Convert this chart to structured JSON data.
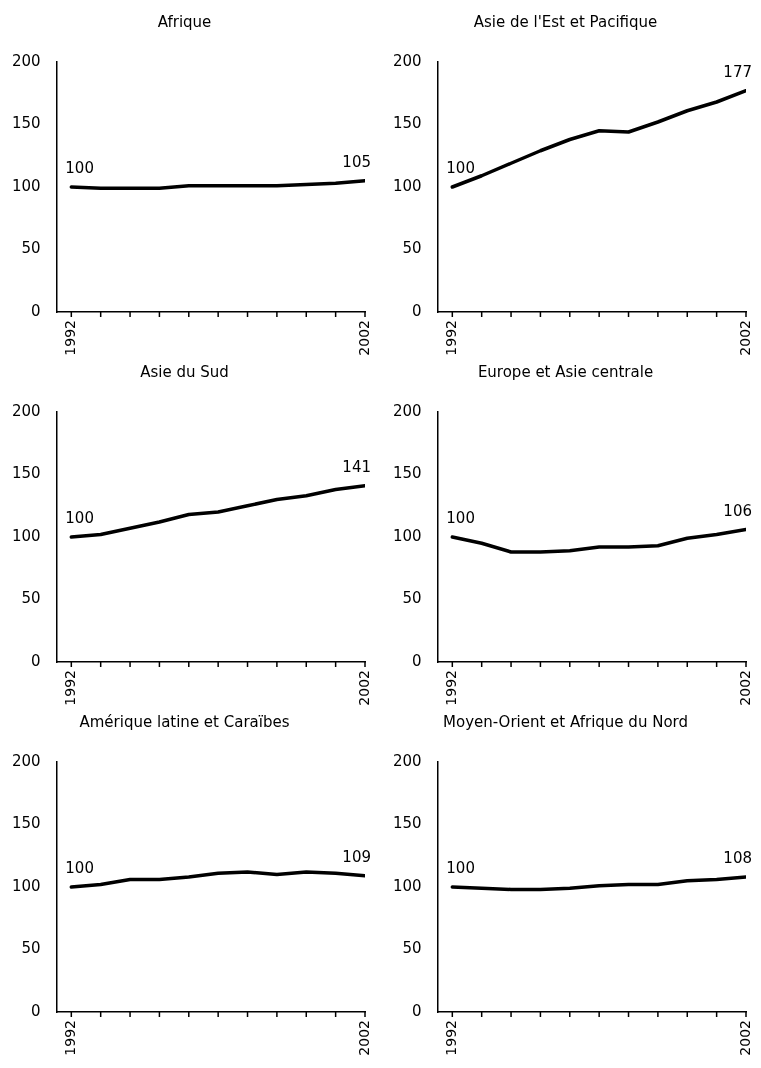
{
  "chart_data": [
    {
      "type": "line",
      "title": "Afrique",
      "categories": [
        "1992",
        null,
        null,
        null,
        null,
        null,
        null,
        null,
        null,
        null,
        "2002"
      ],
      "values": [
        100,
        99,
        99,
        99,
        101,
        101,
        101,
        101,
        102,
        103,
        105
      ],
      "value_labels": [
        "100",
        null,
        null,
        null,
        null,
        null,
        null,
        null,
        null,
        null,
        "105"
      ],
      "color": "#000000",
      "ylim": [
        0,
        200
      ],
      "yticks": [
        0,
        50,
        100,
        150,
        200
      ],
      "grid": false,
      "legend": false
    },
    {
      "type": "line",
      "title": "Asie de l'Est et Pacifique",
      "categories": [
        "1992",
        null,
        null,
        null,
        null,
        null,
        null,
        null,
        null,
        null,
        "2002"
      ],
      "values": [
        100,
        109,
        119,
        129,
        138,
        145,
        144,
        152,
        161,
        168,
        177
      ],
      "value_labels": [
        "100",
        null,
        null,
        null,
        null,
        null,
        null,
        null,
        null,
        null,
        "177"
      ],
      "color": "#000000",
      "ylim": [
        0,
        200
      ],
      "yticks": [
        0,
        50,
        100,
        150,
        200
      ],
      "grid": false,
      "legend": false
    },
    {
      "type": "line",
      "title": "Asie du Sud",
      "categories": [
        "1992",
        null,
        null,
        null,
        null,
        null,
        null,
        null,
        null,
        null,
        "2002"
      ],
      "values": [
        100,
        102,
        107,
        112,
        118,
        120,
        125,
        130,
        133,
        138,
        141
      ],
      "value_labels": [
        "100",
        null,
        null,
        null,
        null,
        null,
        null,
        null,
        null,
        null,
        "141"
      ],
      "color": "#000000",
      "ylim": [
        0,
        200
      ],
      "yticks": [
        0,
        50,
        100,
        150,
        200
      ],
      "grid": false,
      "legend": false
    },
    {
      "type": "line",
      "title": "Europe et Asie centrale",
      "categories": [
        "1992",
        null,
        null,
        null,
        null,
        null,
        null,
        null,
        null,
        null,
        "2002"
      ],
      "values": [
        100,
        95,
        88,
        88,
        89,
        92,
        92,
        93,
        99,
        102,
        106
      ],
      "value_labels": [
        "100",
        null,
        null,
        null,
        null,
        null,
        null,
        null,
        null,
        null,
        "106"
      ],
      "color": "#000000",
      "ylim": [
        0,
        200
      ],
      "yticks": [
        0,
        50,
        100,
        150,
        200
      ],
      "grid": false,
      "legend": false
    },
    {
      "type": "line",
      "title": "Amérique latine et Caraïbes",
      "categories": [
        "1992",
        null,
        null,
        null,
        null,
        null,
        null,
        null,
        null,
        null,
        "2002"
      ],
      "values": [
        100,
        102,
        106,
        106,
        108,
        111,
        112,
        110,
        112,
        111,
        109
      ],
      "value_labels": [
        "100",
        null,
        null,
        null,
        null,
        null,
        null,
        null,
        null,
        null,
        "109"
      ],
      "color": "#000000",
      "ylim": [
        0,
        200
      ],
      "yticks": [
        0,
        50,
        100,
        150,
        200
      ],
      "grid": false,
      "legend": false
    },
    {
      "type": "line",
      "title": "Moyen-Orient et Afrique du Nord",
      "categories": [
        "1992",
        null,
        null,
        null,
        null,
        null,
        null,
        null,
        null,
        null,
        "2002"
      ],
      "values": [
        100,
        99,
        98,
        98,
        99,
        101,
        102,
        102,
        105,
        106,
        108
      ],
      "value_labels": [
        "100",
        null,
        null,
        null,
        null,
        null,
        null,
        null,
        null,
        null,
        "108"
      ],
      "color": "#000000",
      "ylim": [
        0,
        200
      ],
      "yticks": [
        0,
        50,
        100,
        150,
        200
      ],
      "grid": false,
      "legend": false
    }
  ]
}
